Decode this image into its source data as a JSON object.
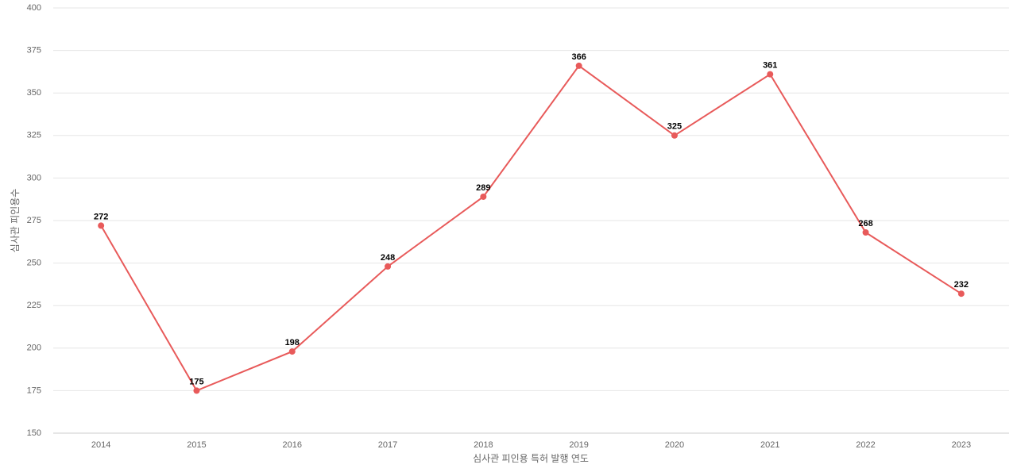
{
  "chart_data": {
    "type": "line",
    "x_label": "심사관 피인용 특허 발행 연도",
    "y_label": "심사관 피인용수",
    "categories": [
      "2014",
      "2015",
      "2016",
      "2017",
      "2018",
      "2019",
      "2020",
      "2021",
      "2022",
      "2023"
    ],
    "values": [
      272,
      175,
      198,
      248,
      289,
      366,
      325,
      361,
      268,
      232
    ],
    "color": "#e85a5a",
    "ylim": [
      150,
      400
    ],
    "yticks": [
      150,
      175,
      200,
      225,
      250,
      275,
      300,
      325,
      350,
      375,
      400
    ],
    "grid": true
  }
}
